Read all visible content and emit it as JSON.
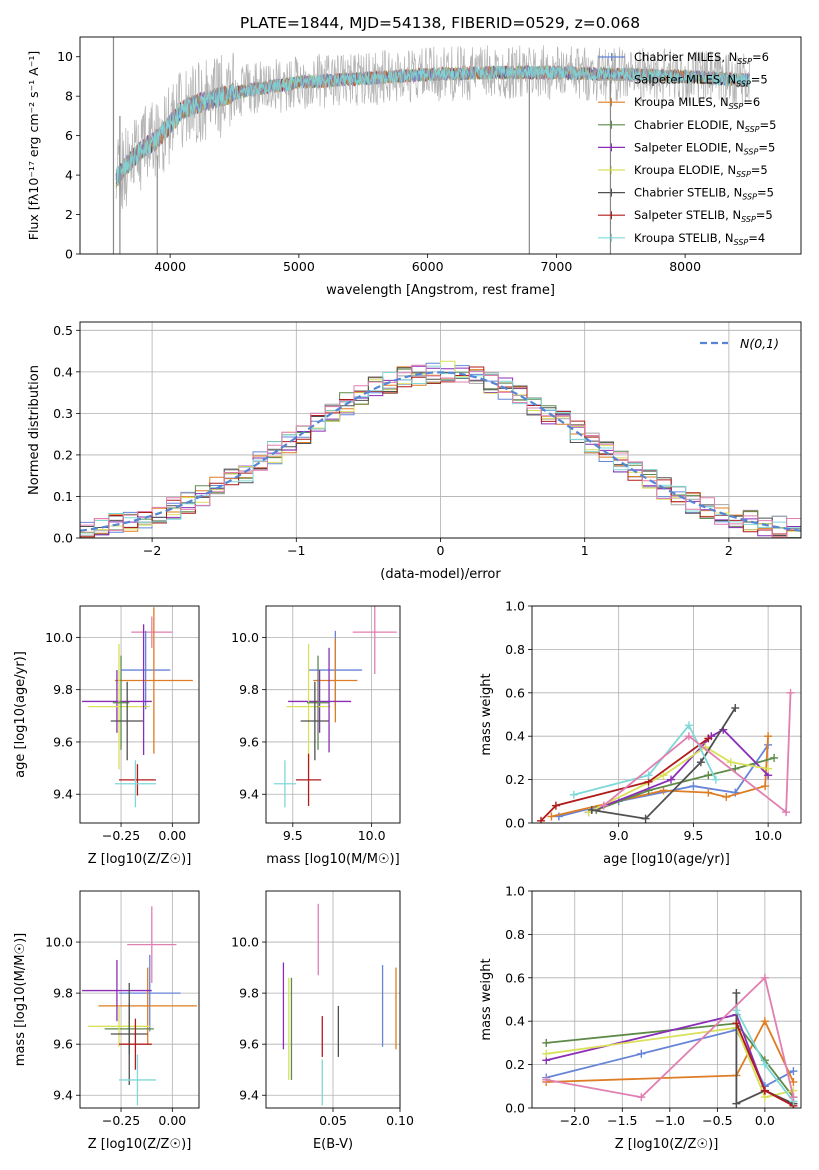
{
  "title": "PLATE=1844, MJD=54138, FIBERID=0529, z=0.068",
  "colors": {
    "chabrier_miles": "#6685d9",
    "salpeter_miles": "#a6a6a6",
    "kroupa_miles": "#de7d23",
    "chabrier_elodie": "#5e8a4a",
    "salpeter_elodie": "#8a2eb8",
    "kroupa_elodie": "#d9e05a",
    "chabrier_stelib": "#505050",
    "salpeter_stelib": "#b01c1c",
    "kroupa_stelib": "#7fd8d8",
    "extra": "#e07fb0",
    "normal_curve": "#5585d4",
    "grid": "#b0b0b0"
  },
  "legend_spectrum": [
    {
      "label": "Chabrier MILES, N",
      "sub": "SSP",
      "tail": "=6",
      "color": "#6685d9"
    },
    {
      "label": "Salpeter MILES, N",
      "sub": "SSP",
      "tail": "=5",
      "color": "#a6a6a6"
    },
    {
      "label": "Kroupa MILES, N",
      "sub": "SSP",
      "tail": "=6",
      "color": "#de7d23"
    },
    {
      "label": "Chabrier ELODIE, N",
      "sub": "SSP",
      "tail": "=5",
      "color": "#5e8a4a"
    },
    {
      "label": "Salpeter ELODIE, N",
      "sub": "SSP",
      "tail": "=5",
      "color": "#8a2eb8"
    },
    {
      "label": "Kroupa ELODIE, N",
      "sub": "SSP",
      "tail": "=5",
      "color": "#d9e05a"
    },
    {
      "label": "Chabrier STELIB, N",
      "sub": "SSP",
      "tail": "=5",
      "color": "#505050"
    },
    {
      "label": "Salpeter STELIB, N",
      "sub": "SSP",
      "tail": "=5",
      "color": "#b01c1c"
    },
    {
      "label": "Kroupa STELIB, N",
      "sub": "SSP",
      "tail": "=4",
      "color": "#7fd8d8"
    }
  ],
  "chart_data": [
    {
      "type": "line",
      "id": "spectrum",
      "xlabel": "wavelength [Angstrom, rest frame]",
      "ylabel": "Flux [fλ10⁻¹⁷ erg cm⁻² s⁻¹ A⁻¹]",
      "xlim": [
        3300,
        8900
      ],
      "ylim": [
        0,
        11
      ],
      "xticks": [
        4000,
        5000,
        6000,
        7000,
        8000
      ],
      "yticks": [
        0,
        2,
        4,
        6,
        8,
        10
      ],
      "continuum": {
        "x": [
          3580,
          3700,
          3800,
          3900,
          4000,
          4100,
          4200,
          4300,
          4400,
          4600,
          4800,
          5000,
          5500,
          6000,
          6500,
          7000,
          7500,
          8000,
          8500
        ],
        "y": [
          3.8,
          4.8,
          5.4,
          5.8,
          6.6,
          7.3,
          7.6,
          7.8,
          8.0,
          8.3,
          8.5,
          8.7,
          8.9,
          9.1,
          9.2,
          9.2,
          9.1,
          9.0,
          8.8
        ]
      },
      "spikes": [
        {
          "x": 3560,
          "y0": 0,
          "y1": 11
        },
        {
          "x": 3610,
          "y0": 0,
          "y1": 7
        },
        {
          "x": 3900,
          "y0": 0,
          "y1": 5
        },
        {
          "x": 6790,
          "y0": 0,
          "y1": 9
        },
        {
          "x": 7420,
          "y0": 0,
          "y1": 9
        }
      ]
    },
    {
      "type": "line",
      "id": "residuals",
      "xlabel": "(data-model)/error",
      "ylabel": "Normed distribution",
      "xlim": [
        -2.5,
        2.5
      ],
      "ylim": [
        0,
        0.52
      ],
      "xticks": [
        -2,
        -1,
        0,
        1,
        2
      ],
      "yticks": [
        0.0,
        0.1,
        0.2,
        0.3,
        0.4,
        0.5
      ],
      "normal_label": "N(0,1)",
      "bin_width": 0.1
    },
    {
      "type": "scatter",
      "id": "age_vs_Z",
      "xlabel": "Z [log10(Z/Z☉)]",
      "ylabel": "age  [log10(age/yr)]",
      "xlim": [
        -0.45,
        0.13
      ],
      "ylim": [
        9.29,
        10.12
      ],
      "xticks": [
        -0.25,
        0.0
      ],
      "yticks": [
        9.4,
        9.6,
        9.8,
        10.0
      ],
      "points": [
        {
          "x": -0.1,
          "xerr": 0.1,
          "y": 10.02,
          "yerr": 0.06,
          "c": "extra"
        },
        {
          "x": -0.13,
          "xerr": 0.12,
          "y": 9.875,
          "yerr": 0.15,
          "c": "chabrier_miles"
        },
        {
          "x": -0.09,
          "xerr": 0.19,
          "y": 9.835,
          "yerr": 0.28,
          "c": "kroupa_miles"
        },
        {
          "x": -0.27,
          "xerr": 0.17,
          "y": 9.755,
          "yerr": 0.12,
          "c": "salpeter_elodie"
        },
        {
          "x": -0.26,
          "xerr": 0.15,
          "y": 9.735,
          "yerr": 0.24,
          "c": "kroupa_elodie"
        },
        {
          "x": -0.25,
          "xerr": 0.04,
          "y": 9.75,
          "yerr": 0.18,
          "c": "chabrier_elodie"
        },
        {
          "x": -0.22,
          "xerr": 0.08,
          "y": 9.68,
          "yerr": 0.15,
          "c": "chabrier_stelib"
        },
        {
          "x": -0.17,
          "xerr": 0.09,
          "y": 9.455,
          "yerr": 0.06,
          "c": "salpeter_stelib"
        },
        {
          "x": -0.18,
          "xerr": 0.1,
          "y": 9.44,
          "yerr": 0.09,
          "c": "kroupa_stelib"
        },
        {
          "x": -0.14,
          "xerr": 0.0,
          "y": 9.8,
          "yerr": 0.25,
          "c": "salpeter_elodie"
        }
      ]
    },
    {
      "type": "scatter",
      "id": "age_vs_mass",
      "xlabel": "mass [log10(M/M☉)]",
      "ylabel": "",
      "xlim": [
        9.33,
        10.18
      ],
      "ylim": [
        9.29,
        10.12
      ],
      "xticks": [
        9.5,
        10.0
      ],
      "yticks": [
        9.4,
        9.6,
        9.8,
        10.0
      ],
      "points": [
        {
          "x": 10.02,
          "xerr": 0.14,
          "y": 10.02,
          "yerr": 0.16,
          "c": "extra"
        },
        {
          "x": 9.77,
          "xerr": 0.17,
          "y": 9.875,
          "yerr": 0.15,
          "c": "chabrier_miles"
        },
        {
          "x": 9.77,
          "xerr": 0.14,
          "y": 9.835,
          "yerr": 0.16,
          "c": "kroupa_miles"
        },
        {
          "x": 9.67,
          "xerr": 0.2,
          "y": 9.755,
          "yerr": 0.12,
          "c": "salpeter_elodie"
        },
        {
          "x": 9.6,
          "xerr": 0.14,
          "y": 9.735,
          "yerr": 0.24,
          "c": "kroupa_elodie"
        },
        {
          "x": 9.66,
          "xerr": 0.07,
          "y": 9.75,
          "yerr": 0.18,
          "c": "chabrier_elodie"
        },
        {
          "x": 9.64,
          "xerr": 0.09,
          "y": 9.68,
          "yerr": 0.15,
          "c": "chabrier_stelib"
        },
        {
          "x": 9.6,
          "xerr": 0.08,
          "y": 9.455,
          "yerr": 0.1,
          "c": "salpeter_stelib"
        },
        {
          "x": 9.45,
          "xerr": 0.07,
          "y": 9.44,
          "yerr": 0.09,
          "c": "kroupa_stelib"
        },
        {
          "x": 9.73,
          "xerr": 0.0,
          "y": 9.76,
          "yerr": 0.2,
          "c": "salpeter_elodie"
        }
      ]
    },
    {
      "type": "line",
      "id": "weight_vs_age",
      "xlabel": "age  [log10(age/yr)]",
      "ylabel": "mass weight",
      "xlim": [
        8.42,
        10.22
      ],
      "ylim": [
        0,
        1.0
      ],
      "xticks": [
        9.0,
        9.5,
        10.0
      ],
      "yticks": [
        0.0,
        0.2,
        0.4,
        0.6,
        0.8,
        1.0
      ],
      "series": [
        {
          "c": "chabrier_miles",
          "x": [
            8.6,
            9.0,
            9.5,
            9.78,
            10.0
          ],
          "y": [
            0.03,
            0.1,
            0.17,
            0.14,
            0.36
          ]
        },
        {
          "c": "kroupa_miles",
          "x": [
            8.55,
            9.3,
            9.6,
            9.72,
            9.98,
            10.0
          ],
          "y": [
            0.03,
            0.15,
            0.14,
            0.12,
            0.17,
            0.4
          ]
        },
        {
          "c": "chabrier_elodie",
          "x": [
            8.85,
            9.2,
            9.6,
            9.78,
            10.04
          ],
          "y": [
            0.06,
            0.15,
            0.22,
            0.25,
            0.3
          ]
        },
        {
          "c": "salpeter_elodie",
          "x": [
            8.8,
            9.35,
            9.62,
            9.7,
            10.0
          ],
          "y": [
            0.05,
            0.2,
            0.4,
            0.43,
            0.22
          ]
        },
        {
          "c": "kroupa_elodie",
          "x": [
            8.8,
            9.3,
            9.58,
            9.75,
            10.0
          ],
          "y": [
            0.05,
            0.22,
            0.35,
            0.28,
            0.25
          ]
        },
        {
          "c": "chabrier_stelib",
          "x": [
            8.82,
            9.18,
            9.55,
            9.78
          ],
          "y": [
            0.06,
            0.02,
            0.28,
            0.53
          ]
        },
        {
          "c": "salpeter_stelib",
          "x": [
            8.48,
            8.58,
            9.2,
            9.6
          ],
          "y": [
            0.01,
            0.08,
            0.19,
            0.39
          ]
        },
        {
          "c": "kroupa_stelib",
          "x": [
            8.7,
            9.2,
            9.47,
            9.65
          ],
          "y": [
            0.13,
            0.22,
            0.45,
            0.2
          ]
        },
        {
          "c": "extra",
          "x": [
            8.9,
            9.47,
            10.12,
            10.15
          ],
          "y": [
            0.08,
            0.4,
            0.05,
            0.6
          ]
        }
      ]
    },
    {
      "type": "scatter",
      "id": "mass_vs_Z",
      "xlabel": "Z [log10(Z/Z☉)]",
      "ylabel": "mass [log10(M/M☉)]",
      "xlim": [
        -0.45,
        0.13
      ],
      "ylim": [
        9.35,
        10.2
      ],
      "xticks": [
        -0.25,
        0.0
      ],
      "yticks": [
        9.4,
        9.6,
        9.8,
        10.0
      ],
      "points": [
        {
          "x": -0.1,
          "xerr": 0.12,
          "y": 9.99,
          "yerr": 0.15,
          "c": "extra"
        },
        {
          "x": -0.11,
          "xerr": 0.15,
          "y": 9.8,
          "yerr": 0.15,
          "c": "chabrier_miles"
        },
        {
          "x": -0.12,
          "xerr": 0.24,
          "y": 9.75,
          "yerr": 0.15,
          "c": "kroupa_miles"
        },
        {
          "x": -0.27,
          "xerr": 0.17,
          "y": 9.81,
          "yerr": 0.12,
          "c": "salpeter_elodie"
        },
        {
          "x": -0.21,
          "xerr": 0.12,
          "y": 9.66,
          "yerr": 0.1,
          "c": "chabrier_elodie"
        },
        {
          "x": -0.26,
          "xerr": 0.15,
          "y": 9.67,
          "yerr": 0.08,
          "c": "kroupa_elodie"
        },
        {
          "x": -0.21,
          "xerr": 0.09,
          "y": 9.64,
          "yerr": 0.2,
          "c": "chabrier_stelib"
        },
        {
          "x": -0.18,
          "xerr": 0.08,
          "y": 9.6,
          "yerr": 0.1,
          "c": "salpeter_stelib"
        },
        {
          "x": -0.17,
          "xerr": 0.09,
          "y": 9.46,
          "yerr": 0.1,
          "c": "kroupa_stelib"
        }
      ]
    },
    {
      "type": "scatter",
      "id": "mass_vs_ebv",
      "xlabel": "E(B-V)",
      "ylabel": "",
      "xlim": [
        0.0,
        0.1
      ],
      "ylim": [
        9.35,
        10.2
      ],
      "xticks": [
        0.05,
        0.1
      ],
      "yticks": [
        9.4,
        9.6,
        9.8,
        10.0
      ],
      "points": [
        {
          "x": 0.039,
          "y": 10.01,
          "yerr": 0.14,
          "c": "extra"
        },
        {
          "x": 0.013,
          "y": 9.75,
          "yerr": 0.17,
          "c": "salpeter_elodie"
        },
        {
          "x": 0.017,
          "y": 9.66,
          "yerr": 0.2,
          "c": "kroupa_elodie"
        },
        {
          "x": 0.019,
          "y": 9.66,
          "yerr": 0.2,
          "c": "chabrier_elodie"
        },
        {
          "x": 0.042,
          "y": 9.63,
          "yerr": 0.08,
          "c": "salpeter_stelib"
        },
        {
          "x": 0.042,
          "y": 9.45,
          "yerr": 0.09,
          "c": "kroupa_stelib"
        },
        {
          "x": 0.054,
          "y": 9.65,
          "yerr": 0.1,
          "c": "chabrier_stelib"
        },
        {
          "x": 0.087,
          "y": 9.75,
          "yerr": 0.16,
          "c": "chabrier_miles"
        },
        {
          "x": 0.097,
          "y": 9.74,
          "yerr": 0.16,
          "c": "kroupa_miles"
        }
      ]
    },
    {
      "type": "line",
      "id": "weight_vs_Z",
      "xlabel": "Z [log10(Z/Z☉)]",
      "ylabel": "mass weight",
      "xlim": [
        -2.45,
        0.38
      ],
      "ylim": [
        0,
        1.0
      ],
      "xticks": [
        -2.0,
        -1.5,
        -1.0,
        -0.5,
        0.0
      ],
      "yticks": [
        0.0,
        0.2,
        0.4,
        0.6,
        0.8,
        1.0
      ],
      "series": [
        {
          "c": "chabrier_miles",
          "x": [
            -2.3,
            -1.3,
            -0.3,
            0.0,
            0.3
          ],
          "y": [
            0.14,
            0.25,
            0.36,
            0.1,
            0.17
          ]
        },
        {
          "c": "kroupa_miles",
          "x": [
            -2.3,
            -0.3,
            0.0,
            0.3
          ],
          "y": [
            0.12,
            0.15,
            0.4,
            0.12
          ]
        },
        {
          "c": "chabrier_elodie",
          "x": [
            -2.3,
            -0.3,
            0.0,
            0.3
          ],
          "y": [
            0.3,
            0.39,
            0.22,
            0.05
          ]
        },
        {
          "c": "salpeter_elodie",
          "x": [
            -2.3,
            -0.3,
            0.0,
            0.3
          ],
          "y": [
            0.22,
            0.43,
            0.08,
            0.02
          ]
        },
        {
          "c": "kroupa_elodie",
          "x": [
            -2.3,
            -0.3,
            0.0,
            0.3
          ],
          "y": [
            0.25,
            0.37,
            0.05,
            0.08
          ]
        },
        {
          "c": "chabrier_stelib",
          "x": [
            -0.3,
            -0.3,
            0.0,
            0.3
          ],
          "y": [
            0.53,
            0.02,
            0.08,
            0.02
          ]
        },
        {
          "c": "salpeter_stelib",
          "x": [
            -0.3,
            0.0,
            0.3
          ],
          "y": [
            0.39,
            0.08,
            0.01
          ]
        },
        {
          "c": "kroupa_stelib",
          "x": [
            -0.3,
            0.0,
            0.3
          ],
          "y": [
            0.45,
            0.2,
            0.03
          ]
        },
        {
          "c": "extra",
          "x": [
            -2.3,
            -1.3,
            0.0,
            0.3
          ],
          "y": [
            0.13,
            0.05,
            0.6,
            0.05
          ]
        }
      ]
    }
  ]
}
